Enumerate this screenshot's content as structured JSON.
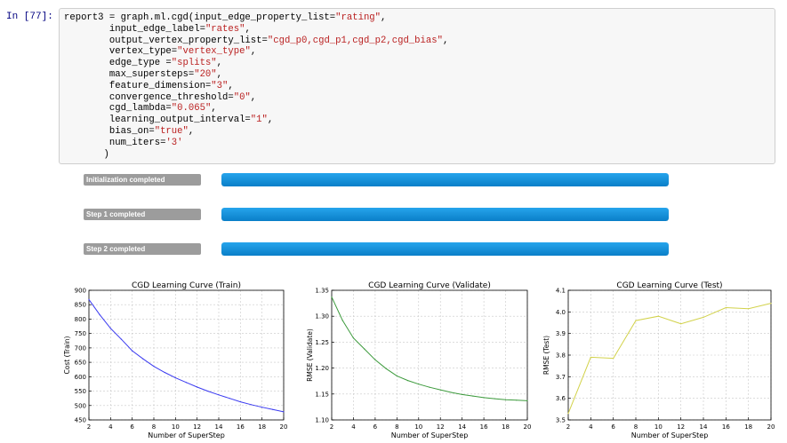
{
  "cell": {
    "prompt": "In [77]:",
    "code_lines": [
      [
        {
          "t": "report3 = graph.ml.cgd(input_edge_property_list="
        },
        {
          "t": "\"rating\"",
          "c": "str"
        },
        {
          "t": ","
        }
      ],
      [
        {
          "t": "        input_edge_label="
        },
        {
          "t": "\"rates\"",
          "c": "str"
        },
        {
          "t": ","
        }
      ],
      [
        {
          "t": "        output_vertex_property_list="
        },
        {
          "t": "\"cgd_p0,cgd_p1,cgd_p2,cgd_bias\"",
          "c": "str"
        },
        {
          "t": ","
        }
      ],
      [
        {
          "t": "        vertex_type="
        },
        {
          "t": "\"vertex_type\"",
          "c": "str"
        },
        {
          "t": ","
        }
      ],
      [
        {
          "t": "        edge_type ="
        },
        {
          "t": "\"splits\"",
          "c": "str"
        },
        {
          "t": ","
        }
      ],
      [
        {
          "t": "        max_supersteps="
        },
        {
          "t": "\"20\"",
          "c": "str"
        },
        {
          "t": ","
        }
      ],
      [
        {
          "t": "        feature_dimension="
        },
        {
          "t": "\"3\"",
          "c": "str"
        },
        {
          "t": ","
        }
      ],
      [
        {
          "t": "        convergence_threshold="
        },
        {
          "t": "\"0\"",
          "c": "str"
        },
        {
          "t": ","
        }
      ],
      [
        {
          "t": "        cgd_lambda="
        },
        {
          "t": "\"0.065\"",
          "c": "str"
        },
        {
          "t": ","
        }
      ],
      [
        {
          "t": "        learning_output_interval="
        },
        {
          "t": "\"1\"",
          "c": "str"
        },
        {
          "t": ","
        }
      ],
      [
        {
          "t": "        bias_on="
        },
        {
          "t": "\"true\"",
          "c": "str"
        },
        {
          "t": ","
        }
      ],
      [
        {
          "t": "        num_iters="
        },
        {
          "t": "'3'",
          "c": "str"
        }
      ],
      [
        {
          "t": "       )"
        }
      ]
    ]
  },
  "progress": [
    {
      "label": "Initialization completed",
      "fraction": 1.0
    },
    {
      "label": "Step 1 completed",
      "fraction": 1.0
    },
    {
      "label": "Step 2 completed",
      "fraction": 1.0
    }
  ],
  "colors": {
    "progress_fill": "#0b8ed9",
    "train": "#3a3af0",
    "validate": "#3c9a3c",
    "test": "#d2d24a"
  },
  "chart_data": [
    {
      "type": "line",
      "title": "CGD Learning Curve  (Train)",
      "xlabel": "Number of SuperStep",
      "ylabel": "Cost (Train)",
      "xlim": [
        2,
        20
      ],
      "ylim": [
        450,
        900
      ],
      "xticks": [
        2,
        4,
        6,
        8,
        10,
        12,
        14,
        16,
        18,
        20
      ],
      "yticks": [
        450,
        500,
        550,
        600,
        650,
        700,
        750,
        800,
        850,
        900
      ],
      "ytick_labels": [
        "450",
        "500",
        "550",
        "600",
        "650",
        "700",
        "750",
        "800",
        "850",
        "900"
      ],
      "grid": true,
      "color": "#3a3af0",
      "x": [
        2,
        3,
        4,
        5,
        6,
        7,
        8,
        9,
        10,
        11,
        12,
        13,
        14,
        15,
        16,
        17,
        18,
        19,
        20
      ],
      "y": [
        868,
        815,
        768,
        730,
        690,
        662,
        636,
        615,
        596,
        580,
        564,
        550,
        537,
        525,
        513,
        503,
        494,
        486,
        478
      ]
    },
    {
      "type": "line",
      "title": "CGD Learning Curve  (Validate)",
      "xlabel": "Number of SuperStep",
      "ylabel": "RMSE (Validate)",
      "xlim": [
        2,
        20
      ],
      "ylim": [
        1.1,
        1.35
      ],
      "xticks": [
        2,
        4,
        6,
        8,
        10,
        12,
        14,
        16,
        18,
        20
      ],
      "yticks": [
        1.1,
        1.15,
        1.2,
        1.25,
        1.3,
        1.35
      ],
      "ytick_labels": [
        "1.10",
        "1.15",
        "1.20",
        "1.25",
        "1.30",
        "1.35"
      ],
      "grid": true,
      "color": "#3c9a3c",
      "x": [
        2,
        3,
        4,
        5,
        6,
        7,
        8,
        9,
        10,
        11,
        12,
        13,
        14,
        15,
        16,
        17,
        18,
        19,
        20
      ],
      "y": [
        1.337,
        1.292,
        1.258,
        1.237,
        1.216,
        1.199,
        1.185,
        1.176,
        1.169,
        1.163,
        1.158,
        1.153,
        1.149,
        1.146,
        1.143,
        1.141,
        1.139,
        1.138,
        1.137
      ]
    },
    {
      "type": "line",
      "title": "CGD Learning Curve  (Test)",
      "xlabel": "Number of SuperStep",
      "ylabel": "RMSE (Test)",
      "xlim": [
        2,
        20
      ],
      "ylim": [
        3.5,
        4.1
      ],
      "xticks": [
        2,
        4,
        6,
        8,
        10,
        12,
        14,
        16,
        18,
        20
      ],
      "yticks": [
        3.5,
        3.6,
        3.7,
        3.8,
        3.9,
        4.0,
        4.1
      ],
      "ytick_labels": [
        "3.5",
        "3.6",
        "3.7",
        "3.8",
        "3.9",
        "4.0",
        "4.1"
      ],
      "grid": true,
      "color": "#d2d24a",
      "x": [
        2,
        4,
        6,
        8,
        10,
        12,
        14,
        16,
        18,
        20
      ],
      "y": [
        3.53,
        3.79,
        3.785,
        3.96,
        3.98,
        3.945,
        3.975,
        4.02,
        4.015,
        4.04
      ]
    }
  ]
}
